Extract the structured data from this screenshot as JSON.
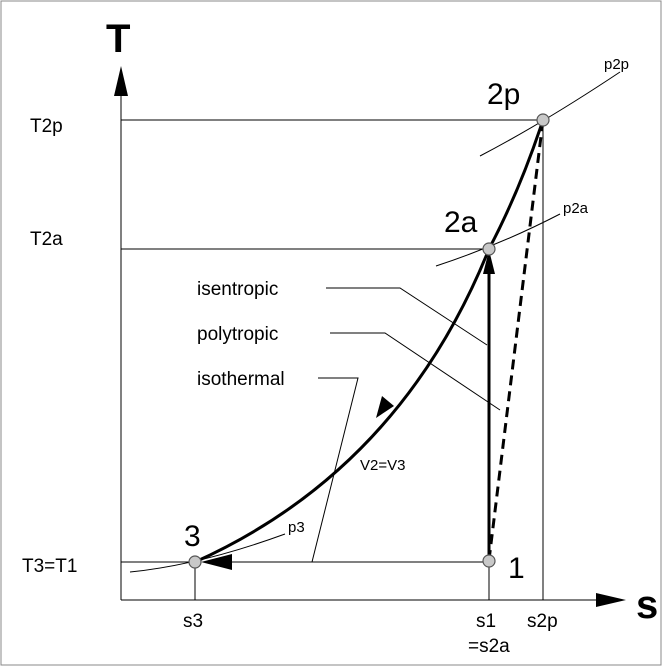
{
  "axes": {
    "y_label": "T",
    "x_label": "s"
  },
  "y_ticks": [
    "T2p",
    "T2a",
    "T3=T1"
  ],
  "x_ticks": [
    "s3",
    "s1",
    "=s2a",
    "s2p"
  ],
  "points": [
    "2p",
    "2a",
    "3",
    "1"
  ],
  "isobars": [
    "p2p",
    "p2a",
    "p3"
  ],
  "processes": [
    "isentropic",
    "polytropic",
    "isothermal"
  ],
  "annotation": "V2=V3"
}
